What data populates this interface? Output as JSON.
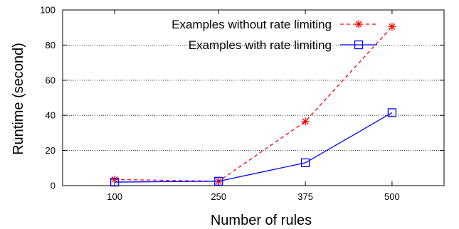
{
  "chart_data": {
    "type": "line",
    "title": "",
    "xlabel": "Number of rules",
    "ylabel": "Runtime (second)",
    "categories": [
      "100",
      "250",
      "375",
      "500"
    ],
    "x": [
      100,
      250,
      375,
      500
    ],
    "xlim": [
      25,
      575
    ],
    "ylim": [
      0,
      100
    ],
    "yticks": [
      "0",
      "20",
      "40",
      "60",
      "80",
      "100"
    ],
    "grid": "horizontal dotted",
    "legend_position": "top-right",
    "series": [
      {
        "name": "Examples without rate limiting",
        "values": [
          3.5,
          2.5,
          36.5,
          90.5
        ],
        "color": "#ff0000",
        "style": "dashed",
        "marker": "star"
      },
      {
        "name": "Examples with rate limiting",
        "values": [
          2.0,
          2.5,
          13.0,
          41.5
        ],
        "color": "#0000ff",
        "style": "solid",
        "marker": "square"
      }
    ]
  }
}
